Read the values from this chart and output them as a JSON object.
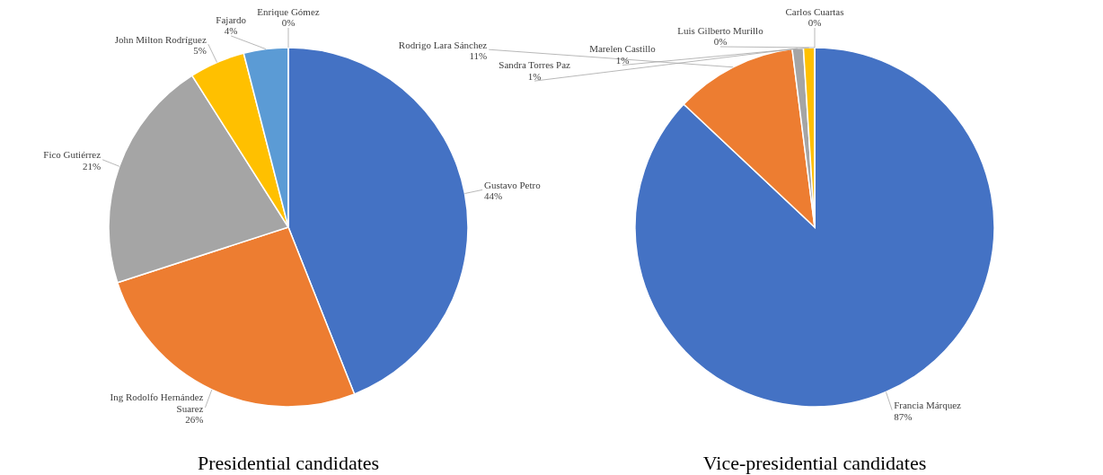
{
  "chart_data": [
    {
      "type": "pie",
      "title": "Presidential candidates",
      "categories": [
        "Gustavo Petro",
        "Ing Rodolfo Hernández Suarez",
        "Fico Gutiérrez",
        "John Milton Rodríguez",
        "Fajardo",
        "Enrique Gómez"
      ],
      "values": [
        44,
        26,
        21,
        5,
        4,
        0
      ],
      "value_labels": [
        "44%",
        "26%",
        "21%",
        "5%",
        "4%",
        "0%"
      ],
      "colors": [
        "#4472c4",
        "#ed7d31",
        "#a5a5a5",
        "#ffc000",
        "#5b9bd5",
        "#70ad47"
      ]
    },
    {
      "type": "pie",
      "title": "Vice-presidential candidates",
      "categories": [
        "Francia Márquez",
        "Rodrigo Lara Sánchez",
        "Sandra Torres Paz",
        "Marelen Castillo",
        "Luis Gilberto Murillo",
        "Carlos Cuartas"
      ],
      "values": [
        87,
        11,
        1,
        1,
        0,
        0
      ],
      "value_labels": [
        "87%",
        "11%",
        "1%",
        "1%",
        "0%",
        "0%"
      ],
      "colors": [
        "#4472c4",
        "#ed7d31",
        "#a5a5a5",
        "#ffc000",
        "#5b9bd5",
        "#70ad47"
      ]
    }
  ]
}
